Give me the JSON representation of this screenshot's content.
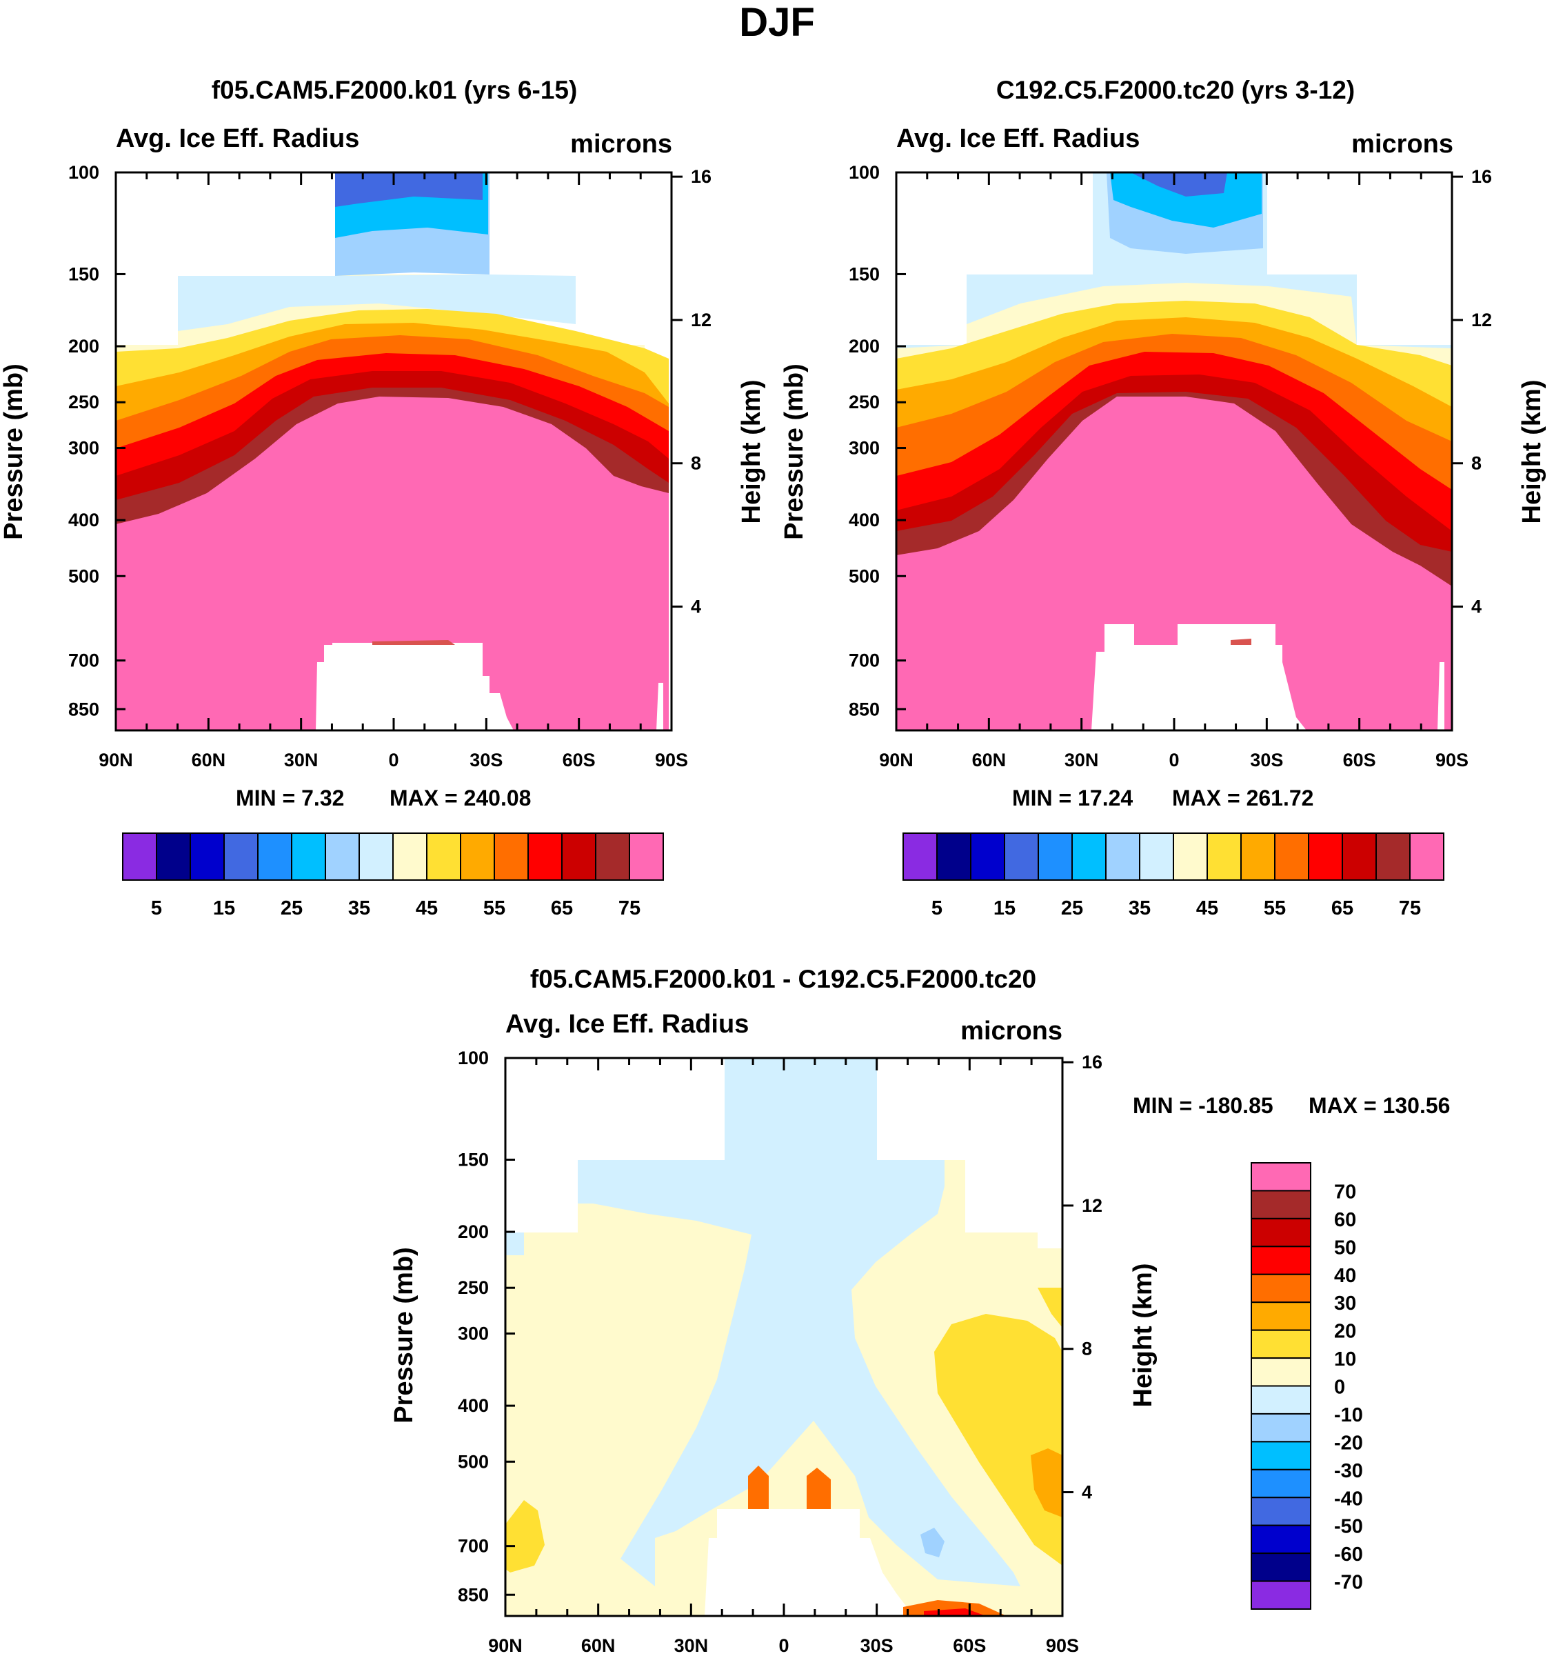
{
  "title": "DJF",
  "colors": {
    "abs_scale": [
      "#8a2be2",
      "#00008b",
      "#0000cd",
      "#4169e1",
      "#1e90ff",
      "#00bfff",
      "#a0d2ff",
      "#d2f0ff",
      "#fffacd",
      "#ffe033",
      "#ffaa00",
      "#ff6e00",
      "#ff0000",
      "#cc0000",
      "#a52a2a",
      "#ff69b4"
    ],
    "diff_scale": [
      "#8a2be2",
      "#00008b",
      "#0000cd",
      "#4169e1",
      "#1e90ff",
      "#00bfff",
      "#a0d2ff",
      "#d2f0ff",
      "#fffacd",
      "#ffe033",
      "#ffaa00",
      "#ff6e00",
      "#ff0000",
      "#cc0000",
      "#a52a2a",
      "#ff69b4"
    ]
  },
  "chart_data": [
    {
      "type": "heatmap",
      "panel": "model-1",
      "title": "f05.CAM5.F2000.k01 (yrs 6-15)",
      "left_label": "Avg. Ice Eff. Radius",
      "right_label": "microns",
      "xlabel": "",
      "ylabel": "Pressure (mb)",
      "ylabel_right": "Height (km)",
      "x_ticks": [
        "90N",
        "60N",
        "30N",
        "0",
        "30S",
        "60S",
        "90S"
      ],
      "y_ticks": [
        "100",
        "150",
        "200",
        "250",
        "300",
        "400",
        "500",
        "700",
        "850"
      ],
      "y_right_ticks": [
        "16",
        "12",
        "8",
        "4"
      ],
      "min_label": "MIN =   7.32",
      "max_label": "MAX = 240.08",
      "min": 7.32,
      "max": 240.08,
      "colorbar_labels": [
        "5",
        "15",
        "25",
        "35",
        "45",
        "55",
        "65",
        "75"
      ]
    },
    {
      "type": "heatmap",
      "panel": "model-2",
      "title": "C192.C5.F2000.tc20 (yrs 3-12)",
      "left_label": "Avg. Ice Eff. Radius",
      "right_label": "microns",
      "xlabel": "",
      "ylabel": "Pressure (mb)",
      "ylabel_right": "Height (km)",
      "x_ticks": [
        "90N",
        "60N",
        "30N",
        "0",
        "30S",
        "60S",
        "90S"
      ],
      "y_ticks": [
        "100",
        "150",
        "200",
        "250",
        "300",
        "400",
        "500",
        "700",
        "850"
      ],
      "y_right_ticks": [
        "16",
        "12",
        "8",
        "4"
      ],
      "min_label": "MIN =  17.24",
      "max_label": "MAX = 261.72",
      "min": 17.24,
      "max": 261.72,
      "colorbar_labels": [
        "5",
        "15",
        "25",
        "35",
        "45",
        "55",
        "65",
        "75"
      ]
    },
    {
      "type": "heatmap",
      "panel": "difference",
      "title": "f05.CAM5.F2000.k01 - C192.C5.F2000.tc20",
      "left_label": "Avg. Ice Eff. Radius",
      "right_label": "microns",
      "xlabel": "",
      "ylabel": "Pressure (mb)",
      "ylabel_right": "Height (km)",
      "x_ticks": [
        "90N",
        "60N",
        "30N",
        "0",
        "30S",
        "60S",
        "90S"
      ],
      "y_ticks": [
        "100",
        "150",
        "200",
        "250",
        "300",
        "400",
        "500",
        "700",
        "850"
      ],
      "y_right_ticks": [
        "16",
        "12",
        "8",
        "4"
      ],
      "min_label": "MIN = -180.85",
      "max_label": "MAX = 130.56",
      "min": -180.85,
      "max": 130.56,
      "colorbar_labels": [
        "70",
        "60",
        "50",
        "40",
        "30",
        "20",
        "10",
        "0",
        "-10",
        "-20",
        "-30",
        "-40",
        "-50",
        "-60",
        "-70"
      ]
    }
  ]
}
